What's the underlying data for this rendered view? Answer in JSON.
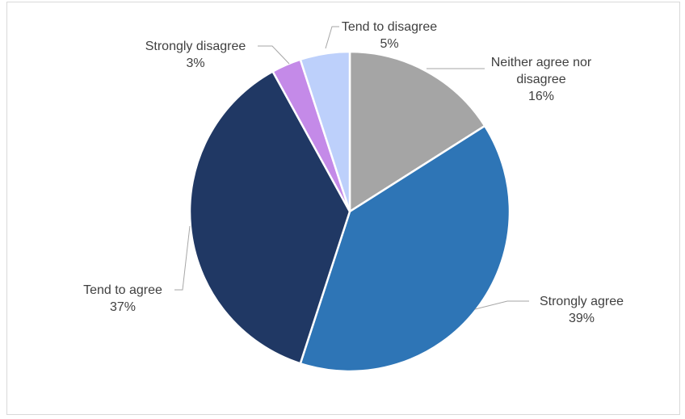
{
  "chart_data": {
    "type": "pie",
    "title": "",
    "slices": [
      {
        "label": "Neither agree nor disagree",
        "display_lines": [
          "Neither agree nor",
          "disagree"
        ],
        "percent_label": "16%",
        "value": 16,
        "color": "#a5a5a5"
      },
      {
        "label": "Strongly agree",
        "display_lines": [
          "Strongly agree"
        ],
        "percent_label": "39%",
        "value": 39,
        "color": "#2e75b6"
      },
      {
        "label": "Tend to agree",
        "display_lines": [
          "Tend to agree"
        ],
        "percent_label": "37%",
        "value": 37,
        "color": "#203864"
      },
      {
        "label": "Strongly disagree",
        "display_lines": [
          "Strongly disagree"
        ],
        "percent_label": "3%",
        "value": 3,
        "color": "#c48ae8"
      },
      {
        "label": "Tend to disagree",
        "display_lines": [
          "Tend to disagree"
        ],
        "percent_label": "5%",
        "value": 5,
        "color": "#bdd0fb"
      }
    ],
    "start_angle": "12 o'clock",
    "direction": "clockwise",
    "legend": "none",
    "data_labels": "outside with leader lines"
  }
}
